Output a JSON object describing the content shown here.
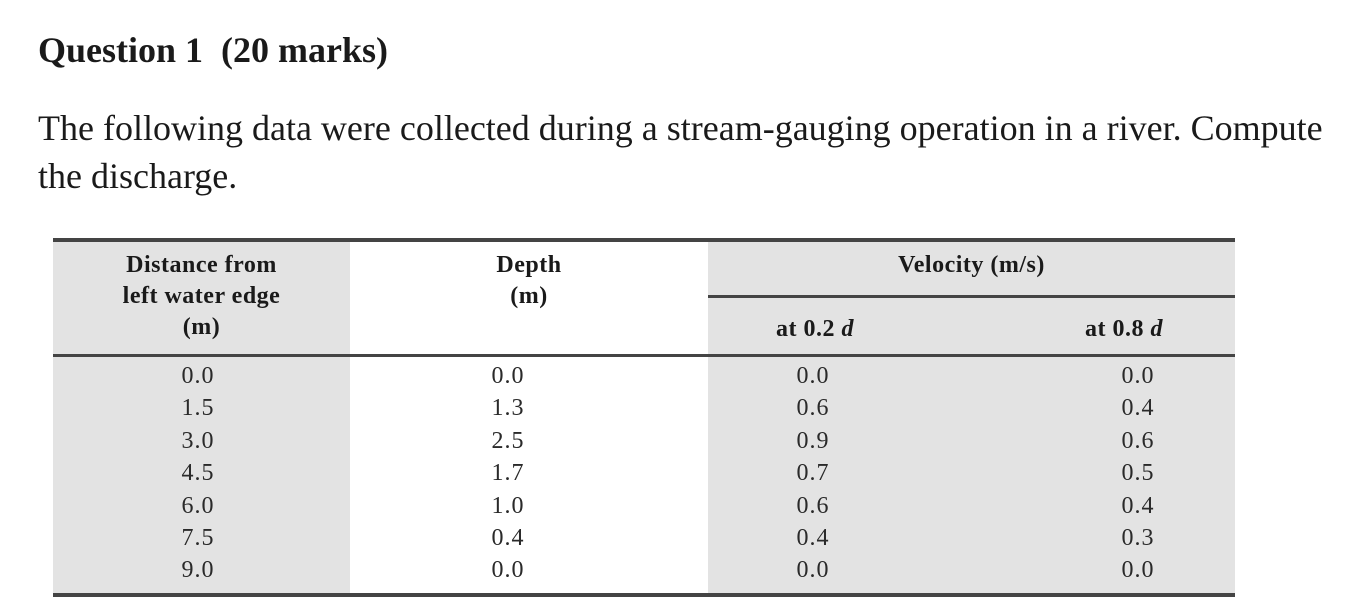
{
  "question": {
    "title": "Question 1  (20 marks)",
    "body": "The following data were collected during a stream-gauging operation in a river. Compute the discharge."
  },
  "table": {
    "headers": {
      "distance_line1": "Distance from",
      "distance_line2": "left water edge",
      "distance_line3": "(m)",
      "depth_line1": "Depth",
      "depth_line2": "(m)",
      "velocity": "Velocity (m/s)",
      "v02_prefix": "at 0.2 ",
      "v02_var": "d",
      "v08_prefix": "at 0.8 ",
      "v08_var": "d"
    },
    "columns": {
      "distance": [
        "0.0",
        "1.5",
        "3.0",
        "4.5",
        "6.0",
        "7.5",
        "9.0"
      ],
      "depth": [
        "0.0",
        "1.3",
        "2.5",
        "1.7",
        "1.0",
        "0.4",
        "0.0"
      ],
      "velocity_02": [
        "0.0",
        "0.6",
        "0.9",
        "0.7",
        "0.6",
        "0.4",
        "0.0"
      ],
      "velocity_08": [
        "0.0",
        "0.4",
        "0.6",
        "0.5",
        "0.4",
        "0.3",
        "0.0"
      ]
    },
    "shade_color": "#e3e3e3"
  }
}
